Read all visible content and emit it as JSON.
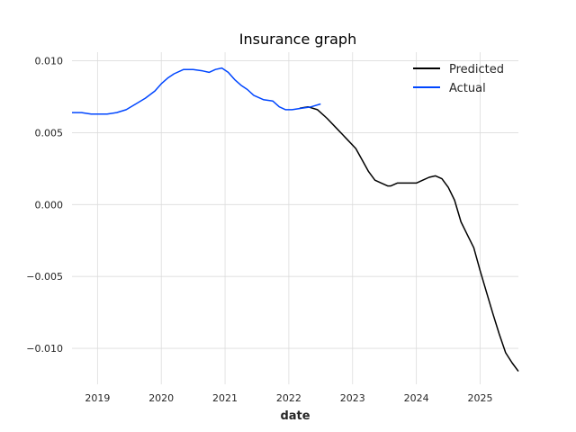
{
  "chart_data": {
    "type": "line",
    "title": "Insurance graph",
    "xlabel": "date",
    "ylabel": "",
    "xlim": [
      2018.6,
      2025.6
    ],
    "ylim": [
      -0.0125,
      0.0106
    ],
    "x_ticks": [
      2019,
      2020,
      2021,
      2022,
      2023,
      2024,
      2025
    ],
    "x_tick_labels": [
      "2019",
      "2020",
      "2021",
      "2022",
      "2023",
      "2024",
      "2025"
    ],
    "y_ticks": [
      -0.01,
      -0.005,
      0.0,
      0.005,
      0.01
    ],
    "y_tick_labels": [
      "−0.010",
      "−0.005",
      "0.000",
      "0.005",
      "0.010"
    ],
    "grid": true,
    "legend_position": "top-right",
    "series": [
      {
        "name": "Predicted",
        "color": "#000000",
        "x": [
          2022.17,
          2022.3,
          2022.45,
          2022.6,
          2022.75,
          2022.9,
          2023.05,
          2023.15,
          2023.25,
          2023.35,
          2023.45,
          2023.55,
          2023.6,
          2023.7,
          2023.8,
          2023.9,
          2024.0,
          2024.1,
          2024.2,
          2024.3,
          2024.4,
          2024.5,
          2024.6,
          2024.7,
          2024.8,
          2024.9,
          2025.0,
          2025.1,
          2025.2,
          2025.3,
          2025.4,
          2025.5,
          2025.6
        ],
        "y": [
          0.0067,
          0.0068,
          0.0066,
          0.006,
          0.0053,
          0.0046,
          0.0039,
          0.0031,
          0.0023,
          0.0017,
          0.0015,
          0.0013,
          0.0013,
          0.0015,
          0.0015,
          0.0015,
          0.0015,
          0.0017,
          0.0019,
          0.002,
          0.0018,
          0.0012,
          0.0003,
          -0.0012,
          -0.0021,
          -0.003,
          -0.0046,
          -0.0061,
          -0.0076,
          -0.009,
          -0.0103,
          -0.011,
          -0.0116
        ]
      },
      {
        "name": "Actual",
        "color": "#0046ff",
        "x": [
          2018.6,
          2018.75,
          2018.9,
          2019.0,
          2019.15,
          2019.3,
          2019.45,
          2019.6,
          2019.75,
          2019.9,
          2020.0,
          2020.1,
          2020.2,
          2020.35,
          2020.5,
          2020.65,
          2020.75,
          2020.85,
          2020.95,
          2021.05,
          2021.15,
          2021.25,
          2021.35,
          2021.45,
          2021.6,
          2021.75,
          2021.85,
          2021.95,
          2022.05,
          2022.2,
          2022.35,
          2022.5
        ],
        "y": [
          0.0064,
          0.0064,
          0.0063,
          0.0063,
          0.0063,
          0.0064,
          0.0066,
          0.007,
          0.0074,
          0.0079,
          0.0084,
          0.0088,
          0.0091,
          0.0094,
          0.0094,
          0.0093,
          0.0092,
          0.0094,
          0.0095,
          0.0092,
          0.0087,
          0.0083,
          0.008,
          0.0076,
          0.0073,
          0.0072,
          0.0068,
          0.0066,
          0.0066,
          0.0067,
          0.0068,
          0.007
        ]
      }
    ]
  }
}
